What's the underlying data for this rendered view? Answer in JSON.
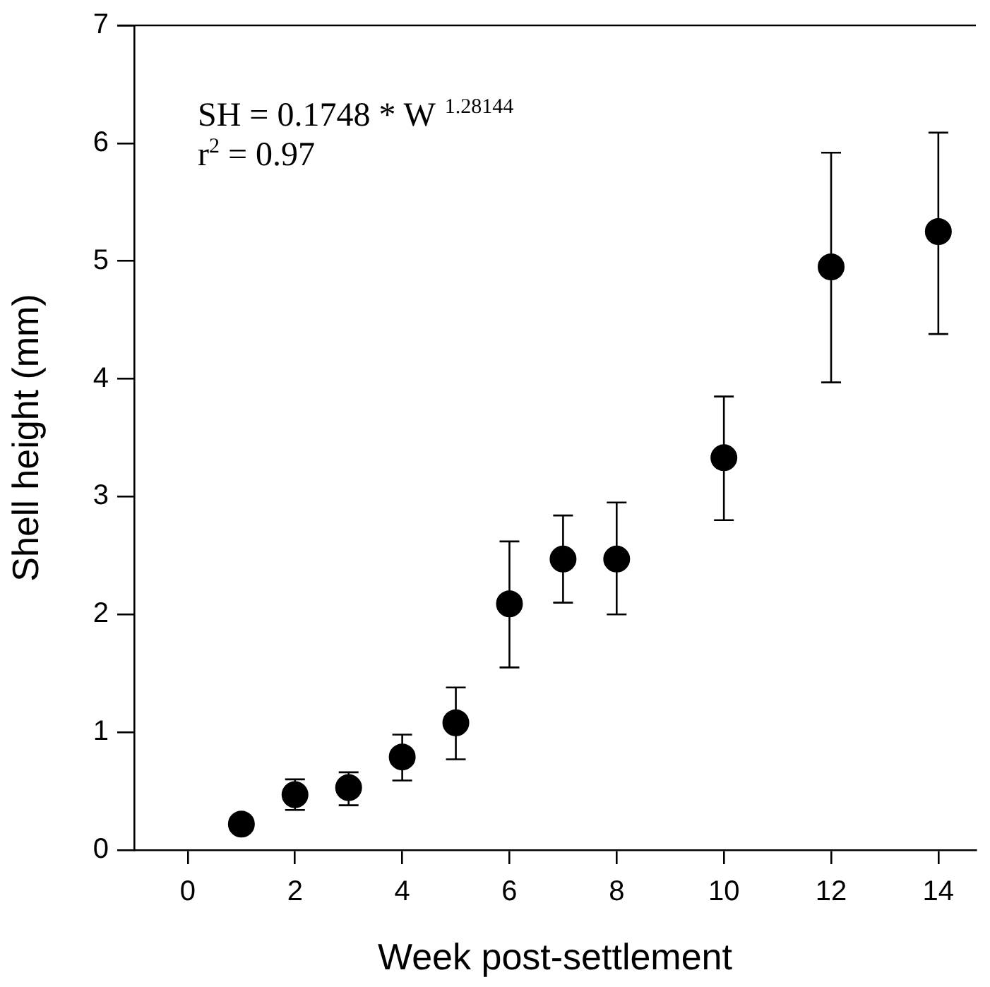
{
  "chart_data": {
    "type": "scatter",
    "xlabel": "Week post-settlement",
    "ylabel": "Shell height (mm)",
    "x": [
      1,
      2,
      3,
      4,
      5,
      6,
      7,
      8,
      10,
      12,
      14
    ],
    "values": [
      0.22,
      0.47,
      0.53,
      0.79,
      1.08,
      2.09,
      2.47,
      2.47,
      3.33,
      4.95,
      5.25
    ],
    "errors": [
      null,
      [
        0.34,
        0.6
      ],
      [
        0.38,
        0.66
      ],
      [
        0.59,
        0.98
      ],
      [
        0.77,
        1.38
      ],
      [
        1.55,
        2.62
      ],
      [
        2.1,
        2.84
      ],
      [
        2.0,
        2.95
      ],
      [
        2.8,
        3.85
      ],
      [
        3.97,
        5.92
      ],
      [
        4.38,
        6.09
      ]
    ],
    "color": "#000000",
    "marker": "circle",
    "xlim": [
      -1,
      14.7
    ],
    "xticks": [
      0,
      2,
      4,
      6,
      8,
      10,
      12,
      14
    ],
    "ylim": [
      0,
      7
    ],
    "yticks": [
      0,
      1,
      2,
      3,
      4,
      5,
      6,
      7
    ],
    "grid": false,
    "legend": false,
    "annotations": [
      "SH = 0.1748 * W $^{1.28144}$",
      "r$^{2}$ = 0.97"
    ]
  }
}
